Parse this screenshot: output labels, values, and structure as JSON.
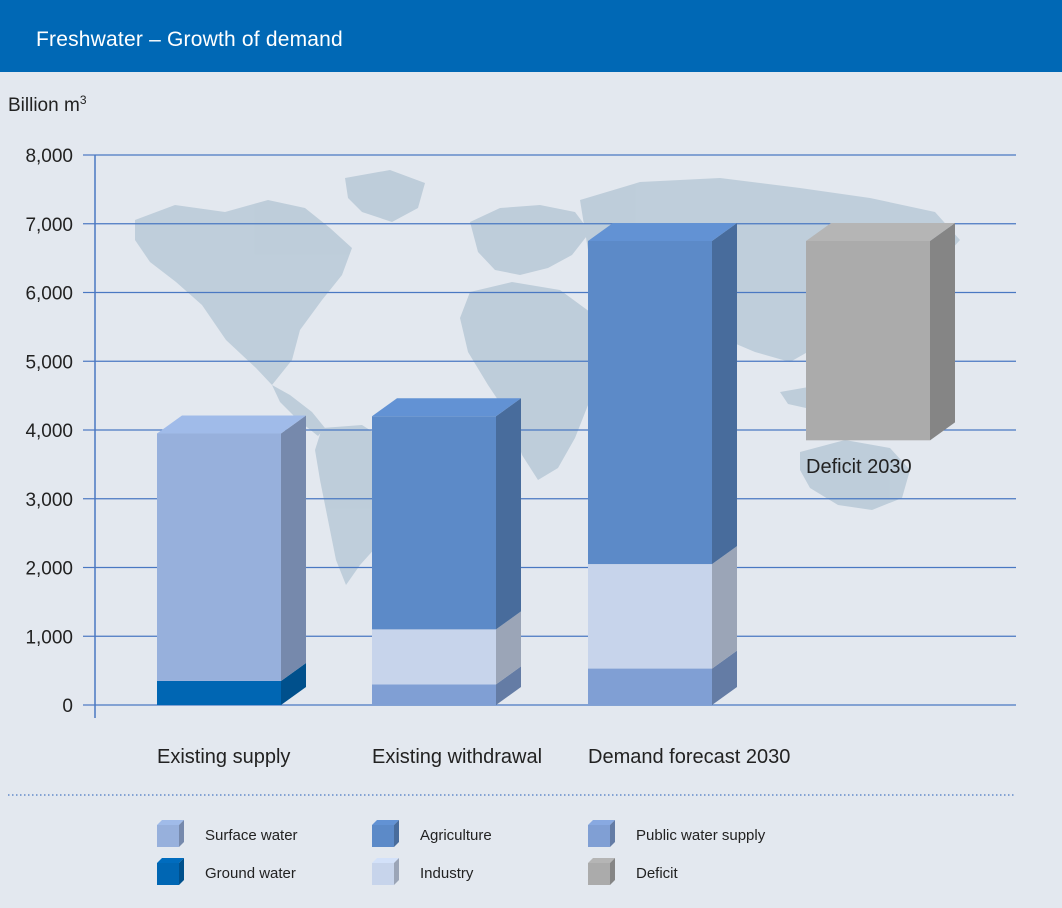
{
  "header": {
    "title": "Freshwater – Growth of demand"
  },
  "colors": {
    "header_bg": "#0068b5",
    "background": "#e3e8ef",
    "gridline": "#4a78c2",
    "surface_water": "#97b0dc",
    "ground_water": "#0066b3",
    "agriculture": "#5c8ac8",
    "industry": "#c7d4eb",
    "public_water_supply": "#809fd4",
    "deficit": "#ababab",
    "world_map": "#bdccd9"
  },
  "chart_data": {
    "type": "bar",
    "title": "Freshwater – Growth of demand",
    "ylabel": "Billion m³",
    "ylim": [
      0,
      8000
    ],
    "yticks": [
      0,
      1000,
      2000,
      3000,
      4000,
      5000,
      6000,
      7000,
      8000
    ],
    "ytick_labels": [
      "0",
      "1,000",
      "2,000",
      "3,000",
      "4,000",
      "5,000",
      "6,000",
      "7,000",
      "8,000"
    ],
    "grid": true,
    "style": "stacked 3D columns",
    "legend_position": "bottom",
    "categories": [
      "Existing supply",
      "Existing withdrawal",
      "Demand forecast 2030",
      ""
    ],
    "series": [
      {
        "name": "Ground water",
        "values": [
          350,
          0,
          0,
          0
        ]
      },
      {
        "name": "Surface water",
        "values": [
          3600,
          0,
          0,
          0
        ]
      },
      {
        "name": "Public water supply",
        "values": [
          0,
          300,
          530,
          0
        ]
      },
      {
        "name": "Industry",
        "values": [
          0,
          800,
          1520,
          0
        ]
      },
      {
        "name": "Agriculture",
        "values": [
          0,
          3100,
          4700,
          0
        ]
      },
      {
        "name": "Deficit",
        "values": [
          0,
          0,
          0,
          2900
        ]
      }
    ],
    "deficit_base": 3850,
    "annotations": [
      "Deficit 2030"
    ]
  },
  "legend": {
    "items": [
      {
        "label": "Surface water",
        "color_key": "surface_water"
      },
      {
        "label": "Agriculture",
        "color_key": "agriculture"
      },
      {
        "label": "Public water supply",
        "color_key": "public_water_supply"
      },
      {
        "label": "Ground water",
        "color_key": "ground_water"
      },
      {
        "label": "Industry",
        "color_key": "industry"
      },
      {
        "label": "Deficit",
        "color_key": "deficit"
      }
    ]
  }
}
